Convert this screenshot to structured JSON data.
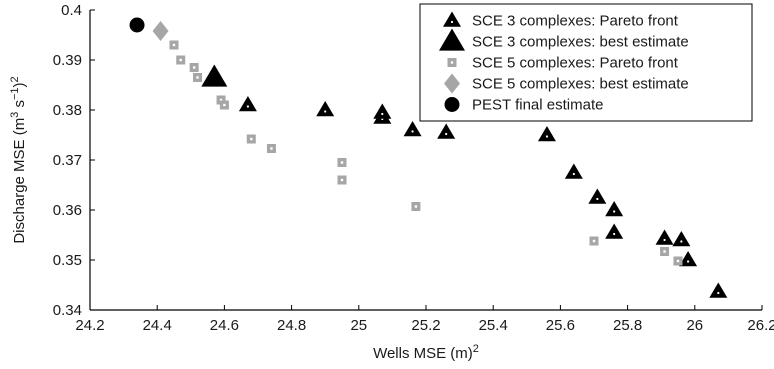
{
  "chart_data": {
    "type": "scatter",
    "x_axis": {
      "label_main": "Wells MSE (m)",
      "label_sup": "2",
      "lim": [
        24.2,
        26.2
      ],
      "ticks": [
        24.2,
        24.4,
        24.6,
        24.8,
        25.0,
        25.2,
        25.4,
        25.6,
        25.8,
        26.0,
        26.2
      ],
      "tick_labels": [
        "24.2",
        "24.4",
        "24.6",
        "24.8",
        "25",
        "25.2",
        "25.4",
        "25.6",
        "25.8",
        "26",
        "26.2"
      ]
    },
    "y_axis": {
      "label_parts": [
        "Discharge MSE (m",
        "3",
        " s",
        "−1",
        ")",
        "2"
      ],
      "lim": [
        0.34,
        0.4
      ],
      "ticks": [
        0.34,
        0.35,
        0.36,
        0.37,
        0.38,
        0.39,
        0.4
      ],
      "tick_labels": [
        "0.34",
        "0.35",
        "0.36",
        "0.37",
        "0.38",
        "0.39",
        "0.4"
      ]
    },
    "grid": false,
    "legend_position": "top-right",
    "series": [
      {
        "name": "SCE 3 complexes: Pareto front",
        "marker": "triangle-dotted",
        "color": "#000000",
        "points": [
          [
            24.67,
            0.381
          ],
          [
            24.9,
            0.38
          ],
          [
            25.07,
            0.3785
          ],
          [
            25.07,
            0.3795
          ],
          [
            25.16,
            0.376
          ],
          [
            25.26,
            0.3755
          ],
          [
            25.56,
            0.375
          ],
          [
            25.64,
            0.3675
          ],
          [
            25.71,
            0.3625
          ],
          [
            25.76,
            0.36
          ],
          [
            25.76,
            0.3555
          ],
          [
            25.91,
            0.3543
          ],
          [
            25.96,
            0.354
          ],
          [
            25.98,
            0.35
          ],
          [
            26.07,
            0.3437
          ]
        ]
      },
      {
        "name": "SCE 3 complexes: best estimate",
        "marker": "triangle-large",
        "color": "#000000",
        "points": [
          [
            24.57,
            0.3865
          ]
        ]
      },
      {
        "name": "SCE 5 complexes: Pareto front",
        "marker": "square-dotted",
        "color": "#a6a6a6",
        "points": [
          [
            24.45,
            0.393
          ],
          [
            24.47,
            0.39
          ],
          [
            24.51,
            0.3885
          ],
          [
            24.52,
            0.3865
          ],
          [
            24.59,
            0.382
          ],
          [
            24.6,
            0.381
          ],
          [
            24.68,
            0.3742
          ],
          [
            24.74,
            0.3723
          ],
          [
            24.95,
            0.3695
          ],
          [
            24.95,
            0.366
          ],
          [
            25.17,
            0.3607
          ],
          [
            25.7,
            0.3538
          ],
          [
            25.91,
            0.3517
          ],
          [
            25.95,
            0.3498
          ]
        ]
      },
      {
        "name": "SCE 5 complexes: best estimate",
        "marker": "diamond",
        "color": "#a6a6a6",
        "points": [
          [
            24.41,
            0.3958
          ]
        ]
      },
      {
        "name": "PEST final estimate",
        "marker": "circle",
        "color": "#000000",
        "points": [
          [
            24.34,
            0.397
          ]
        ]
      }
    ]
  }
}
